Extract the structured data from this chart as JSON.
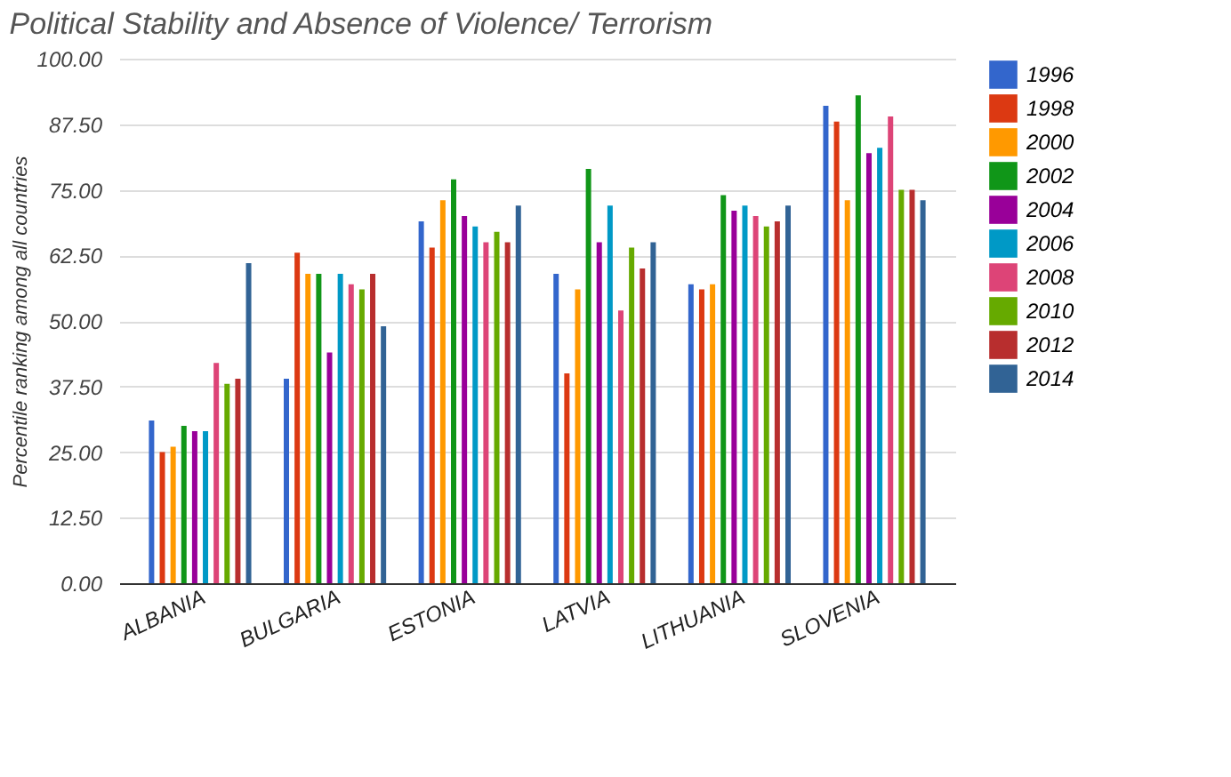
{
  "chart_data": {
    "type": "bar",
    "title": "Political Stability and Absence of Violence/ Terrorism",
    "ylabel": "Percentile ranking among all countries",
    "categories": [
      "ALBANIA",
      "BULGARIA",
      "ESTONIA",
      "LATVIA",
      "LITHUANIA",
      "SLOVENIA"
    ],
    "series": [
      {
        "name": "1996",
        "color": "#3366cc",
        "values": [
          31,
          39,
          69,
          59,
          57,
          91
        ]
      },
      {
        "name": "1998",
        "color": "#dc3912",
        "values": [
          25,
          63,
          64,
          40,
          56,
          88
        ]
      },
      {
        "name": "2000",
        "color": "#ff9900",
        "values": [
          26,
          59,
          73,
          56,
          57,
          73
        ]
      },
      {
        "name": "2002",
        "color": "#109618",
        "values": [
          30,
          59,
          77,
          79,
          74,
          93
        ]
      },
      {
        "name": "2004",
        "color": "#990099",
        "values": [
          29,
          44,
          70,
          65,
          71,
          82
        ]
      },
      {
        "name": "2006",
        "color": "#0099c6",
        "values": [
          29,
          59,
          68,
          72,
          72,
          83
        ]
      },
      {
        "name": "2008",
        "color": "#dd4477",
        "values": [
          42,
          57,
          65,
          52,
          70,
          89
        ]
      },
      {
        "name": "2010",
        "color": "#66aa00",
        "values": [
          38,
          56,
          67,
          64,
          68,
          75
        ]
      },
      {
        "name": "2012",
        "color": "#b82e2e",
        "values": [
          39,
          59,
          65,
          60,
          69,
          75
        ]
      },
      {
        "name": "2014",
        "color": "#316395",
        "values": [
          61,
          49,
          72,
          65,
          72,
          73
        ]
      }
    ],
    "ylim": [
      0,
      100
    ],
    "yticks": [
      {
        "value": 0,
        "label": "0.00"
      },
      {
        "value": 12.5,
        "label": "12.50"
      },
      {
        "value": 25,
        "label": "25.00"
      },
      {
        "value": 37.5,
        "label": "37.50"
      },
      {
        "value": 50,
        "label": "50.00"
      },
      {
        "value": 62.5,
        "label": "62.50"
      },
      {
        "value": 75,
        "label": "75.00"
      },
      {
        "value": 87.5,
        "label": "87.50"
      },
      {
        "value": 100,
        "label": "100.00"
      }
    ],
    "grid": "y",
    "legend": "right"
  }
}
